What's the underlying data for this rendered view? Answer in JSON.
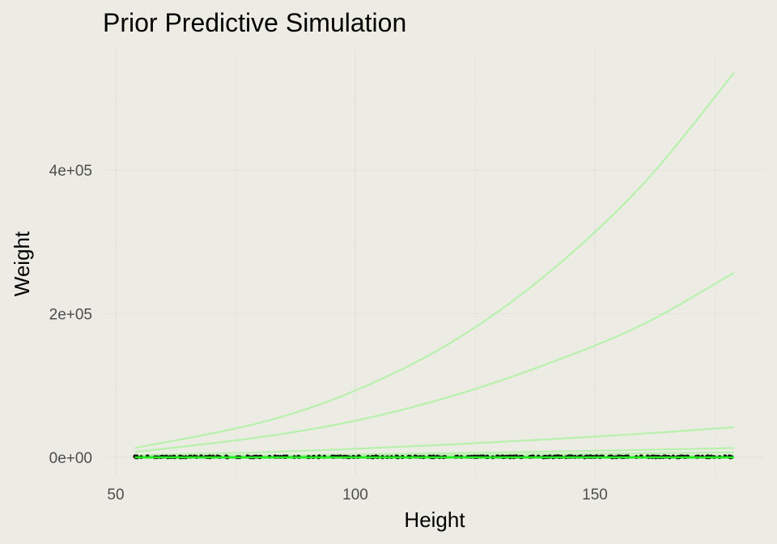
{
  "chart_data": {
    "type": "line",
    "title": "Prior Predictive Simulation",
    "xlabel": "Height",
    "ylabel": "Weight",
    "xlim": [
      52,
      181
    ],
    "ylim": [
      -25000,
      550000
    ],
    "x_ticks": [
      50,
      100,
      150
    ],
    "x_tick_labels": [
      "50",
      "100",
      "150"
    ],
    "y_ticks": [
      0,
      200000,
      400000
    ],
    "y_tick_labels": [
      "0e+00",
      "2e+05",
      "4e+05"
    ],
    "grid": true,
    "legend": "none",
    "line_color": "#b2f2a6",
    "highlight_color": "#22ee22",
    "point_color": "#111111",
    "x": [
      54,
      80,
      100,
      120,
      140,
      160,
      179
    ],
    "series": [
      {
        "values": [
          13000,
          48000,
          93000,
          160000,
          255000,
          380000,
          535000
        ]
      },
      {
        "values": [
          7500,
          28000,
          51000,
          85000,
          130000,
          185000,
          257000
        ]
      },
      {
        "values": [
          2800,
          7000,
          12000,
          18000,
          25000,
          33000,
          42000
        ]
      },
      {
        "values": [
          1200,
          2600,
          4000,
          5800,
          8000,
          10500,
          13000
        ]
      },
      {
        "values": [
          600,
          1300,
          2000,
          3000,
          4200,
          5600,
          7000
        ]
      },
      {
        "values": [
          200,
          500,
          800,
          1200,
          1600,
          2000,
          2500
        ]
      },
      {
        "values": [
          0,
          0,
          0,
          0,
          0,
          0,
          0
        ],
        "highlight": true
      }
    ],
    "points": {
      "x_range": [
        54,
        179
      ],
      "count": 300,
      "y_range": [
        0,
        1500
      ]
    }
  }
}
